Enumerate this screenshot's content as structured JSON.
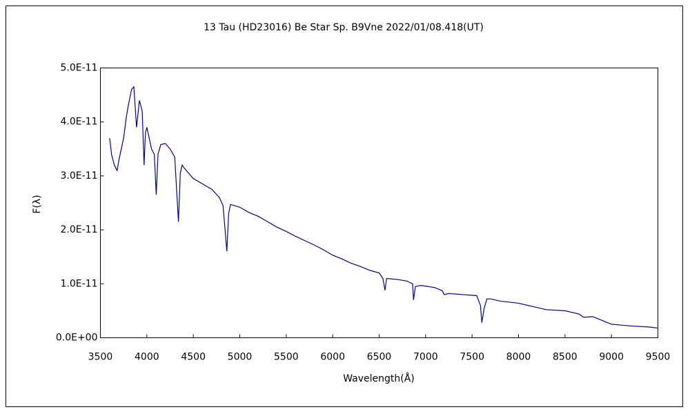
{
  "chart_data": {
    "type": "line",
    "title": "13 Tau (HD23016)    Be Star    Sp. B9Vne    2022/01/08.418(UT)",
    "x_label": "Wavelength(Å)",
    "y_label": "F(λ)",
    "color": "#000080",
    "x": [
      3600,
      3620,
      3650,
      3680,
      3700,
      3750,
      3780,
      3800,
      3835,
      3860,
      3889,
      3920,
      3950,
      3970,
      3985,
      4000,
      4050,
      4080,
      4101,
      4120,
      4150,
      4200,
      4250,
      4300,
      4340,
      4360,
      4380,
      4400,
      4450,
      4500,
      4600,
      4700,
      4780,
      4820,
      4861,
      4880,
      4900,
      5000,
      5100,
      5200,
      5300,
      5400,
      5500,
      5600,
      5700,
      5800,
      5900,
      6000,
      6100,
      6200,
      6300,
      6400,
      6500,
      6540,
      6563,
      6580,
      6700,
      6800,
      6860,
      6870,
      6890,
      6950,
      7100,
      7180,
      7200,
      7250,
      7400,
      7550,
      7590,
      7605,
      7630,
      7660,
      7700,
      7800,
      8000,
      8200,
      8300,
      8500,
      8650,
      8700,
      8800,
      8900,
      9000,
      9200,
      9400,
      9500
    ],
    "values": [
      3.7e-11,
      3.4e-11,
      3.2e-11,
      3.1e-11,
      3.3e-11,
      3.7e-11,
      4.1e-11,
      4.3e-11,
      4.6e-11,
      4.65e-11,
      3.9e-11,
      4.4e-11,
      4.2e-11,
      3.2e-11,
      3.8e-11,
      3.9e-11,
      3.5e-11,
      3.4e-11,
      2.65e-11,
      3.4e-11,
      3.58e-11,
      3.6e-11,
      3.5e-11,
      3.35e-11,
      2.15e-11,
      3.05e-11,
      3.2e-11,
      3.15e-11,
      3.05e-11,
      2.95e-11,
      2.85e-11,
      2.75e-11,
      2.6e-11,
      2.45e-11,
      1.6e-11,
      2.3e-11,
      2.47e-11,
      2.42e-11,
      2.32e-11,
      2.25e-11,
      2.15e-11,
      2.05e-11,
      1.97e-11,
      1.88e-11,
      1.8e-11,
      1.72e-11,
      1.63e-11,
      1.53e-11,
      1.46e-11,
      1.38e-11,
      1.32e-11,
      1.25e-11,
      1.2e-11,
      1.1e-11,
      8.8e-12,
      1.1e-11,
      1.08e-11,
      1.05e-11,
      1e-11,
      7e-12,
      9.5e-12,
      9.7e-12,
      9.3e-12,
      8.7e-12,
      8e-12,
      8.2e-12,
      8e-12,
      7.8e-12,
      6e-12,
      2.8e-12,
      5.5e-12,
      7.2e-12,
      7.2e-12,
      6.8e-12,
      6.4e-12,
      5.6e-12,
      5.2e-12,
      5e-12,
      4.4e-12,
      3.8e-12,
      3.9e-12,
      3.2e-12,
      2.5e-12,
      2.2e-12,
      2e-12,
      1.8e-12
    ],
    "xlim": [
      3500,
      9500
    ],
    "xticks": [
      3500,
      4000,
      4500,
      5000,
      5500,
      6000,
      6500,
      7000,
      7500,
      8000,
      8500,
      9000,
      9500
    ],
    "ylim": [
      0,
      5e-11
    ],
    "yticks": [
      {
        "value": 0,
        "label": "0.0E+00"
      },
      {
        "value": 1e-11,
        "label": "1.0E-11"
      },
      {
        "value": 2e-11,
        "label": "2.0E-11"
      },
      {
        "value": 3e-11,
        "label": "3.0E-11"
      },
      {
        "value": 4e-11,
        "label": "4.0E-11"
      },
      {
        "value": 5e-11,
        "label": "5.0E-11"
      }
    ],
    "grid": false
  }
}
